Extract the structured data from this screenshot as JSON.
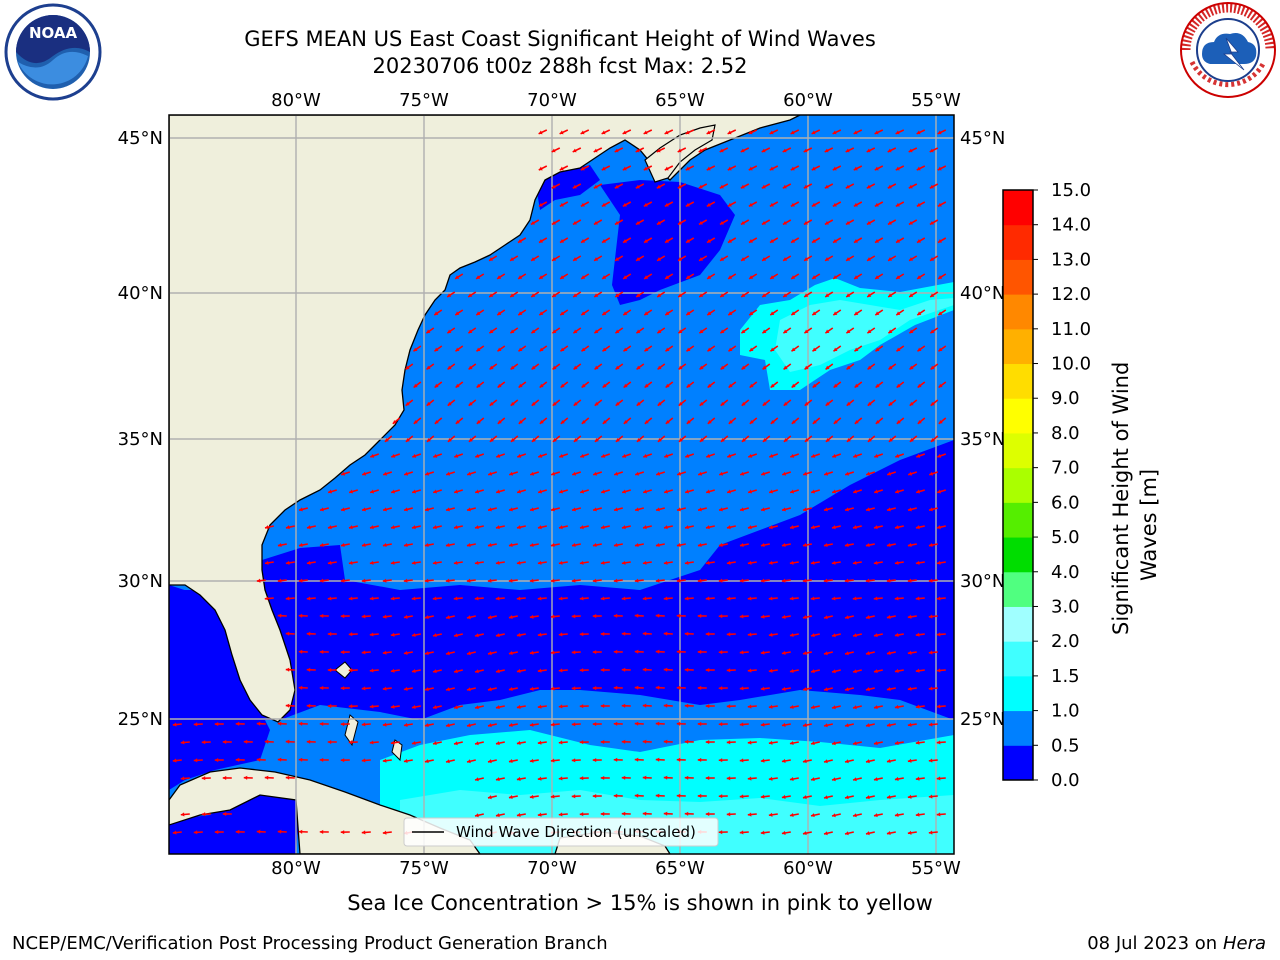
{
  "header": {
    "title_line1": "GEFS MEAN US East Coast Significant Height of Wind Waves",
    "title_line2": "20230706 t00z 288h fcst   Max: 2.52"
  },
  "logos": {
    "left": "noaa-logo",
    "right": "national-weather-service-logo"
  },
  "map": {
    "lon_labels": [
      "80°W",
      "75°W",
      "70°W",
      "65°W",
      "60°W",
      "55°W"
    ],
    "lat_labels": [
      "45°N",
      "40°N",
      "35°N",
      "30°N",
      "25°N"
    ],
    "lon_range": [
      -85,
      -54.5
    ],
    "lat_range": [
      20.5,
      46
    ],
    "legend_label": "Wind Wave Direction (unscaled)",
    "arrow_color": "#ff0000",
    "land_color": "#efefdc",
    "grid_color": "#b0b0b0"
  },
  "colorbar": {
    "label": "Significant Height of Wind Waves [m]",
    "label_line1": "Significant Height of Wind",
    "label_line2": "Waves [m]",
    "ticks": [
      "0.0",
      "0.5",
      "1.0",
      "1.5",
      "2.0",
      "3.0",
      "4.0",
      "5.0",
      "6.0",
      "7.0",
      "8.0",
      "9.0",
      "10.0",
      "11.0",
      "12.0",
      "13.0",
      "14.0",
      "15.0"
    ],
    "colors": [
      "#0000ff",
      "#0080ff",
      "#00ffff",
      "#40ffff",
      "#a0ffff",
      "#50ff80",
      "#00dd00",
      "#55ee00",
      "#aaff00",
      "#ddff00",
      "#ffff00",
      "#ffdd00",
      "#ffb000",
      "#ff8800",
      "#ff5500",
      "#ff2a00",
      "#ff0000"
    ]
  },
  "footer": {
    "note": "Sea Ice Concentration > 15% is shown in pink to yellow",
    "credit_left": "NCEP/EMC/Verification Post Processing Product Generation Branch",
    "credit_date": "08 Jul 2023 on ",
    "credit_host": "Hera"
  }
}
